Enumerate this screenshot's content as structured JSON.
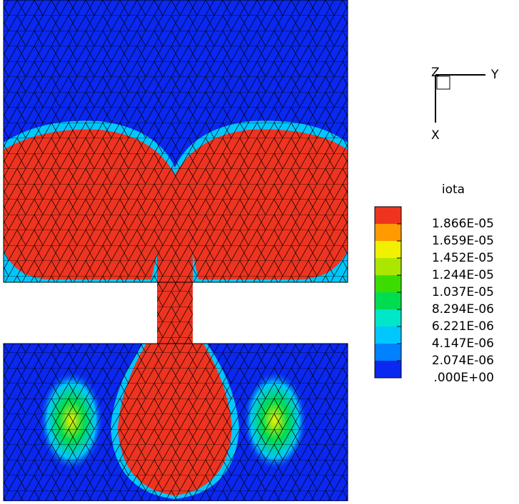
{
  "triad": {
    "z": "Z",
    "y": "Y",
    "x": "X"
  },
  "legend": {
    "title": "iota",
    "clim": [
      0,
      2.074e-05
    ],
    "colors": [
      "#0a28f0",
      "#0082ff",
      "#00c8ff",
      "#00e6c8",
      "#00dc50",
      "#3cdc00",
      "#aae600",
      "#f0f000",
      "#ff9a00",
      "#ee3420"
    ],
    "levels": [
      {
        "value": 0,
        "label": ".000E+00"
      },
      {
        "value": 2.074e-06,
        "label": "2.074E-06"
      },
      {
        "value": 4.147e-06,
        "label": "4.147E-06"
      },
      {
        "value": 6.221e-06,
        "label": "6.221E-06"
      },
      {
        "value": 8.294e-06,
        "label": "8.294E-06"
      },
      {
        "value": 1.037e-05,
        "label": "1.037E-05"
      },
      {
        "value": 1.244e-05,
        "label": "1.244E-05"
      },
      {
        "value": 1.452e-05,
        "label": "1.452E-05"
      },
      {
        "value": 1.659e-05,
        "label": "1.659E-05"
      },
      {
        "value": 1.866e-05,
        "label": "1.866E-05"
      }
    ]
  }
}
